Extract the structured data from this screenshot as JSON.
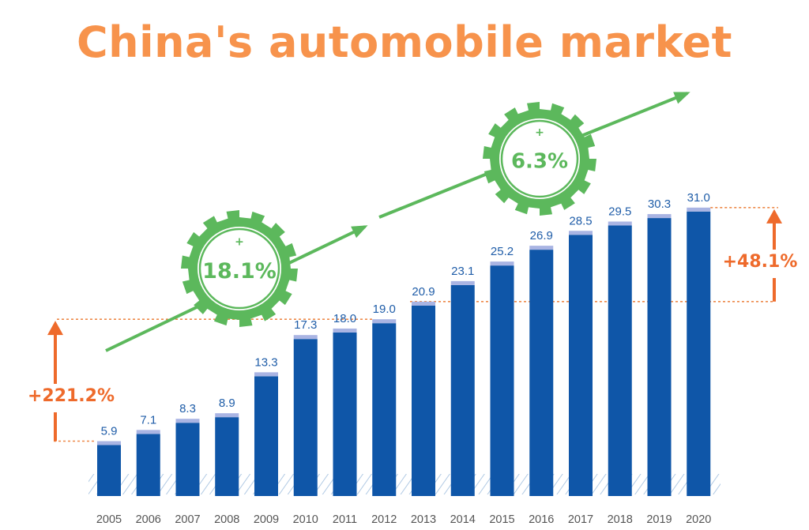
{
  "chart_data": {
    "type": "bar",
    "title": "China's automobile market",
    "categories": [
      "2005",
      "2006",
      "2007",
      "2008",
      "2009",
      "2010",
      "2011",
      "2012",
      "2013",
      "2014",
      "2015",
      "2016",
      "2017",
      "2018",
      "2019",
      "2020"
    ],
    "values": [
      5.9,
      7.1,
      8.3,
      8.9,
      13.3,
      17.3,
      18.0,
      19.0,
      20.9,
      23.1,
      25.2,
      26.9,
      28.5,
      29.5,
      30.3,
      31.0
    ],
    "value_labels": [
      "5.9",
      "7.1",
      "8.3",
      "8.9",
      "13.3",
      "17.3",
      "18.0",
      "19.0",
      "20.9",
      "23.1",
      "25.2",
      "26.9",
      "28.5",
      "29.5",
      "30.3",
      "31.0"
    ],
    "xlabel": "",
    "ylabel": "",
    "grid": false,
    "annotations": {
      "badge_1": {
        "sign": "+",
        "text": "18.1%"
      },
      "badge_2": {
        "sign": "+",
        "text": "6.3%"
      },
      "growth_left": {
        "text": "+221.2%",
        "from_year": "2005",
        "to_year": "2012"
      },
      "growth_right": {
        "text": "+48.1%",
        "from_year": "2013",
        "to_year": "2020"
      }
    }
  },
  "colors": {
    "title": "#F7934C",
    "bar": "#0F56A8",
    "bar_cap": "#A9B4E3",
    "value_label": "#1F5DA8",
    "tick_label": "#555555",
    "accent_green": "#5CB85C",
    "accent_orange": "#EE6A2B",
    "dashed": "#EE8A4A",
    "hatch": "#8FB3D9"
  },
  "icons": {
    "badge": "gear-badge-icon",
    "up_arrow": "up-arrow-icon",
    "trend_arrow": "trend-arrow-icon"
  }
}
